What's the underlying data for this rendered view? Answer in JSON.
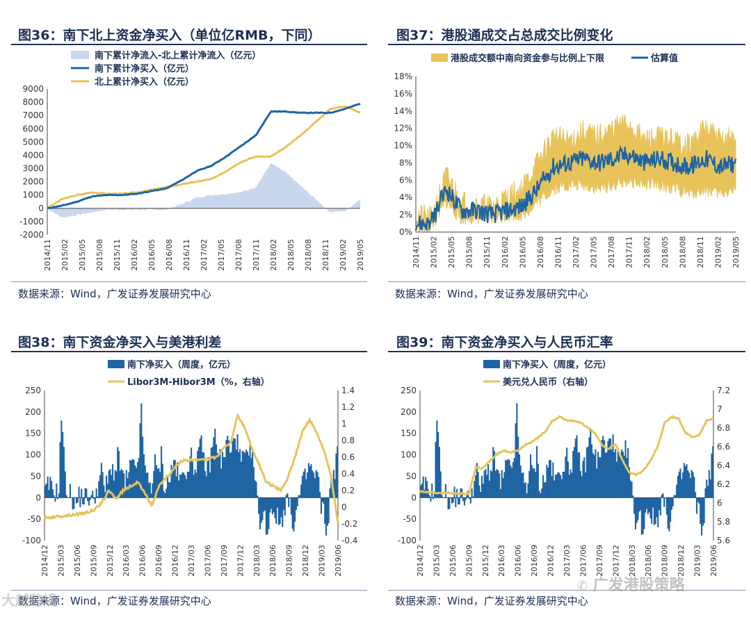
{
  "chart_data": [
    {
      "id": "fig36",
      "type": "line",
      "title": "图36：南下北上资金净买入（单位亿RMB，下同）",
      "source": "数据来源：Wind，广发证券发展研究中心",
      "yticks": [
        "9000",
        "8000",
        "7000",
        "6000",
        "5000",
        "4000",
        "3000",
        "2000",
        "1000",
        "0",
        "-1000",
        "-2000"
      ],
      "ylim": [
        -2000,
        9000
      ],
      "xticks": [
        "2014/11",
        "2015/02",
        "2015/05",
        "2015/08",
        "2015/11",
        "2016/02",
        "2016/05",
        "2016/08",
        "2016/11",
        "2017/02",
        "2017/05",
        "2017/08",
        "2017/11",
        "2018/02",
        "2018/05",
        "2018/08",
        "2018/11",
        "2019/02",
        "2019/05"
      ],
      "legend": [
        "南下累计净流入-北上累计净流入（亿元）",
        "南下累计净买入（亿元）",
        "北上累计净买入（亿元）"
      ],
      "colors": {
        "area": "#c9d7ee",
        "south": "#1f64a3",
        "north": "#e7c35a"
      },
      "series": [
        {
          "name": "南下累计净买入（亿元）",
          "values": [
            0,
            200,
            500,
            900,
            1000,
            1000,
            1100,
            1300,
            1500,
            2100,
            2800,
            3200,
            3900,
            4700,
            5500,
            7300,
            7300,
            7200,
            7200,
            7200,
            7500,
            7900
          ]
        },
        {
          "name": "北上累计净买入（亿元）",
          "values": [
            0,
            700,
            1000,
            1200,
            1100,
            1100,
            1200,
            1400,
            1600,
            1800,
            2000,
            2200,
            2800,
            3500,
            3900,
            3900,
            4600,
            5500,
            6500,
            7500,
            7700,
            7200
          ]
        },
        {
          "name": "南下累计净流入-北上累计净流入（亿元）",
          "values": [
            0,
            -700,
            -500,
            -300,
            -100,
            -100,
            -100,
            -100,
            -100,
            300,
            800,
            1000,
            1100,
            1200,
            1600,
            3400,
            2700,
            1700,
            700,
            -300,
            -200,
            700
          ]
        }
      ]
    },
    {
      "id": "fig37",
      "type": "line",
      "title": "图37：港股通成交占总成交比例变化",
      "source": "数据来源：Wind，广发证券发展研究中心",
      "yticks": [
        "18%",
        "16%",
        "14%",
        "12%",
        "10%",
        "8%",
        "6%",
        "4%",
        "2%",
        "0%"
      ],
      "ylim": [
        0,
        18
      ],
      "xticks": [
        "2014/11",
        "2015/02",
        "2015/05",
        "2015/08",
        "2015/11",
        "2016/02",
        "2016/05",
        "2016/08",
        "2016/11",
        "2017/02",
        "2017/05",
        "2017/08",
        "2017/11",
        "2018/02",
        "2018/05",
        "2018/08",
        "2018/11",
        "2019/02",
        "2019/05"
      ],
      "legend": [
        "港股成交额中南向资金参与比例上下限",
        "估算值"
      ],
      "colors": {
        "band": "#e7c35a",
        "line": "#1f64a3"
      },
      "series": [
        {
          "name": "估算值",
          "values": [
            1.0,
            1.0,
            5.0,
            2.5,
            2.5,
            2.0,
            2.5,
            3.0,
            5.0,
            7.5,
            8.0,
            8.5,
            8.0,
            8.5,
            9.0,
            8.0,
            8.5,
            8.0,
            7.5,
            8.5,
            7.5,
            8.0
          ]
        },
        {
          "name": "上限",
          "values": [
            2.0,
            1.5,
            6.5,
            3.5,
            3.0,
            3.0,
            4.0,
            5.0,
            8.0,
            11.0,
            10.5,
            11.5,
            11.0,
            12.0,
            12.5,
            10.5,
            11.0,
            10.5,
            10.0,
            12.0,
            10.5,
            11.0
          ]
        },
        {
          "name": "下限",
          "values": [
            0.5,
            0.5,
            3.5,
            1.5,
            1.8,
            1.5,
            2.0,
            2.0,
            3.5,
            5.0,
            5.5,
            5.5,
            5.0,
            5.5,
            6.0,
            5.5,
            5.5,
            5.0,
            4.5,
            5.0,
            4.5,
            5.0
          ]
        }
      ]
    },
    {
      "id": "fig38",
      "type": "bar",
      "title": "图38：南下资金净买入与美港利差",
      "source": "数据来源：Wind，广发证券发展研究中心",
      "yticks": [
        "250",
        "200",
        "150",
        "100",
        "50",
        "0",
        "-50",
        "-100"
      ],
      "ylim": [
        -100,
        250
      ],
      "y2ticks": [
        "1.4",
        "1.2",
        "1",
        "0.8",
        "0.6",
        "0.4",
        "0.2",
        "0",
        "-0.2",
        "-0.4"
      ],
      "y2lim": [
        -0.4,
        1.4
      ],
      "xticks": [
        "2014/12",
        "2015/03",
        "2015/06",
        "2015/09",
        "2015/12",
        "2016/03",
        "2016/06",
        "2016/09",
        "2016/12",
        "2017/03",
        "2017/06",
        "2017/09",
        "2017/12",
        "2018/03",
        "2018/06",
        "2018/09",
        "2018/12",
        "2019/03",
        "2019/06"
      ],
      "legend": [
        "南下净买入（周度，亿元）",
        "Libor3M-Hibor3M（%，右轴）"
      ],
      "colors": {
        "bar": "#1f64a3",
        "line": "#e7c35a"
      },
      "series": [
        {
          "name": "南下净买入（周度，亿元）",
          "values": [
            10,
            30,
            20,
            15,
            5,
            210,
            40,
            10,
            5,
            -20,
            0,
            5,
            0,
            5,
            -10,
            10,
            30,
            60,
            20,
            40,
            80,
            50,
            100,
            60,
            30,
            50,
            80,
            60,
            90,
            200,
            60,
            40,
            30,
            80,
            50,
            100,
            20,
            40,
            60,
            90,
            50,
            40,
            60,
            80,
            90,
            70,
            100,
            120,
            80,
            60,
            100,
            150,
            120,
            80,
            100,
            140,
            90,
            160,
            120,
            80,
            100,
            80,
            120,
            60,
            -20,
            -60,
            -40,
            -80,
            -20,
            -30,
            -50,
            -60,
            -20,
            0,
            -40,
            -60,
            -20,
            20,
            40,
            60,
            80,
            40,
            60,
            -20,
            -40,
            -80,
            30,
            60,
            100
          ]
        },
        {
          "name": "Libor3M-Hibor3M（%，右轴）",
          "values": [
            -0.13,
            -0.12,
            -0.11,
            -0.1,
            -0.09,
            -0.08,
            -0.06,
            -0.03,
            0.05,
            0.2,
            0.1,
            0.2,
            0.25,
            0.3,
            0.18,
            0.02,
            0.25,
            0.35,
            0.45,
            0.55,
            0.56,
            0.57,
            0.58,
            0.58,
            0.6,
            0.7,
            0.78,
            1.1,
            0.95,
            0.7,
            0.5,
            0.3,
            0.25,
            0.2,
            0.35,
            0.6,
            0.9,
            1.05,
            0.9,
            0.7,
            0.4,
            -0.2
          ]
        }
      ]
    },
    {
      "id": "fig39",
      "type": "bar",
      "title": "图39：南下资金净买入与人民币汇率",
      "source": "数据来源：Wind，广发证券发展研究中心",
      "yticks": [
        "250",
        "200",
        "150",
        "100",
        "50",
        "0",
        "-50",
        "-100"
      ],
      "ylim": [
        -100,
        250
      ],
      "y2ticks": [
        "7.2",
        "7",
        "6.8",
        "6.6",
        "6.4",
        "6.2",
        "6",
        "5.8",
        "5.6"
      ],
      "y2lim": [
        5.6,
        7.2
      ],
      "xticks": [
        "2014/12",
        "2015/03",
        "2015/06",
        "2015/09",
        "2015/12",
        "2016/03",
        "2016/06",
        "2016/09",
        "2016/12",
        "2017/03",
        "2017/06",
        "2017/09",
        "2017/12",
        "2018/03",
        "2018/06",
        "2018/09",
        "2018/12",
        "2019/03",
        "2019/06"
      ],
      "legend": [
        "南下净买入（周度，亿元）",
        "美元兑人民币（右轴）"
      ],
      "colors": {
        "bar": "#1f64a3",
        "line": "#e7c35a"
      },
      "series": [
        {
          "name": "南下净买入（周度，亿元）",
          "values": [
            10,
            30,
            20,
            15,
            5,
            210,
            40,
            10,
            5,
            -20,
            0,
            5,
            0,
            5,
            -10,
            10,
            30,
            60,
            20,
            40,
            80,
            50,
            100,
            60,
            30,
            50,
            80,
            60,
            90,
            200,
            60,
            40,
            30,
            80,
            50,
            100,
            20,
            40,
            60,
            90,
            50,
            40,
            60,
            80,
            90,
            70,
            100,
            120,
            80,
            60,
            100,
            150,
            120,
            80,
            100,
            140,
            90,
            160,
            120,
            80,
            100,
            80,
            120,
            60,
            -20,
            -60,
            -40,
            -80,
            -20,
            -30,
            -50,
            -60,
            -20,
            0,
            -40,
            -60,
            -20,
            20,
            40,
            60,
            80,
            40,
            60,
            -20,
            -40,
            -80,
            30,
            60,
            100
          ]
        },
        {
          "name": "美元兑人民币（右轴）",
          "values": [
            6.12,
            6.12,
            6.11,
            6.11,
            6.11,
            6.1,
            6.1,
            6.1,
            6.38,
            6.37,
            6.45,
            6.52,
            6.56,
            6.54,
            6.56,
            6.62,
            6.65,
            6.7,
            6.77,
            6.88,
            6.92,
            6.88,
            6.88,
            6.86,
            6.8,
            6.75,
            6.62,
            6.58,
            6.63,
            6.45,
            6.32,
            6.3,
            6.35,
            6.45,
            6.6,
            6.85,
            6.92,
            6.9,
            6.75,
            6.7,
            6.73,
            6.88,
            6.9
          ]
        }
      ]
    }
  ],
  "watermarks": [
    "广发港股策略",
    "大越跨境"
  ]
}
